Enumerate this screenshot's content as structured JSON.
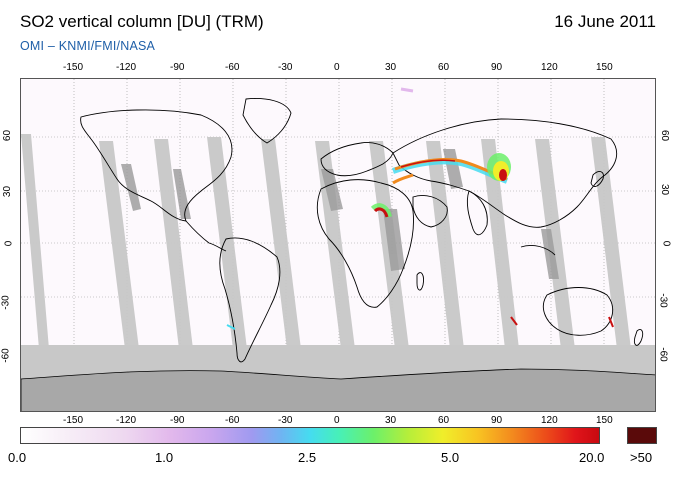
{
  "header": {
    "title": "SO2 vertical column [DU] (TRM)",
    "date": "16 June 2011",
    "credit": "OMI  –  KNMI/FMI/NASA"
  },
  "map": {
    "x_ticks": [
      "-150",
      "-120",
      "-90",
      "-60",
      "-30",
      "0",
      "30",
      "60",
      "90",
      "120",
      "150"
    ],
    "y_ticks_left": [
      "60",
      "30",
      "0",
      "-30",
      "-60"
    ],
    "y_ticks_right": [
      "60",
      "30",
      "0",
      "-30",
      "-60"
    ],
    "colors": {
      "no_data_swath": "#c8c8c8",
      "land_mask_south": "#c8c8c8",
      "coast": "#000000",
      "plume_high": "#c81010",
      "plume_mid": "#f08a1e",
      "plume_low": "#45dcf0"
    }
  },
  "colorbar": {
    "labels": [
      "0.0",
      "1.0",
      "2.5",
      "5.0",
      "20.0",
      ">50"
    ],
    "overflow_color": "#5a0a0a"
  }
}
